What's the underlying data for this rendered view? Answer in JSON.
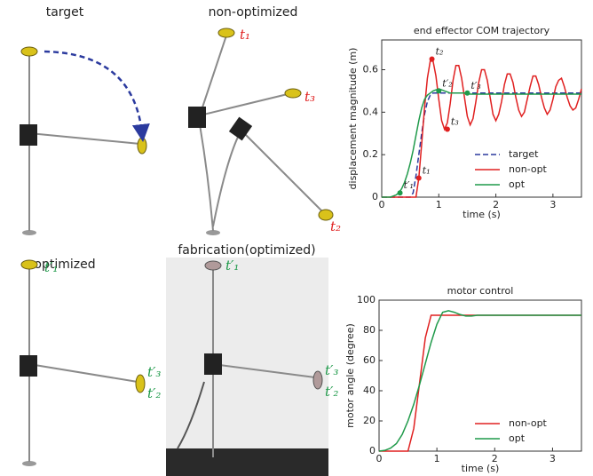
{
  "panels": [
    {
      "title": "target"
    },
    {
      "title": "non-optimized",
      "labels": [
        "t₁",
        "t₃",
        "t₂"
      ]
    },
    {
      "title": "optimized",
      "labels": [
        "t′₁",
        "t′₃",
        "t′₂"
      ]
    },
    {
      "title": "fabrication(optimized)",
      "labels": [
        "t′₁",
        "t′₃",
        "t′₂"
      ]
    }
  ],
  "chart_data": [
    {
      "type": "line",
      "title": "end effector COM trajectory",
      "xlabel": "time (s)",
      "ylabel": "displacement magnitude (m)",
      "xlim": [
        0,
        3.5
      ],
      "ylim": [
        0,
        0.74
      ],
      "xticks": [
        0,
        1,
        2,
        3
      ],
      "yticks": [
        0,
        0.2,
        0.4,
        0.6
      ],
      "legend": "lower right",
      "x": [
        0,
        0.05,
        0.1,
        0.15,
        0.2,
        0.25,
        0.3,
        0.35,
        0.4,
        0.45,
        0.5,
        0.55,
        0.6,
        0.65,
        0.7,
        0.75,
        0.8,
        0.85,
        0.9,
        0.95,
        1,
        1.05,
        1.1,
        1.15,
        1.2,
        1.25,
        1.3,
        1.35,
        1.4,
        1.45,
        1.5,
        1.55,
        1.6,
        1.65,
        1.7,
        1.75,
        1.8,
        1.85,
        1.9,
        1.95,
        2,
        2.05,
        2.1,
        2.15,
        2.2,
        2.25,
        2.3,
        2.35,
        2.4,
        2.45,
        2.5,
        2.55,
        2.6,
        2.65,
        2.7,
        2.75,
        2.8,
        2.85,
        2.9,
        2.95,
        3,
        3.05,
        3.1,
        3.15,
        3.2,
        3.25,
        3.3,
        3.35,
        3.4,
        3.45,
        3.5
      ],
      "series": [
        {
          "name": "target",
          "color": "#2b3a9e",
          "style": "dashed",
          "values": [
            0,
            0,
            0,
            0,
            0,
            0,
            0,
            0,
            0,
            0,
            0,
            0.02,
            0.1,
            0.2,
            0.3,
            0.39,
            0.45,
            0.48,
            0.49,
            0.49,
            0.49,
            0.49,
            0.49,
            0.49,
            0.49,
            0.49,
            0.49,
            0.49,
            0.49,
            0.49,
            0.49,
            0.49,
            0.49,
            0.49,
            0.49,
            0.49,
            0.49,
            0.49,
            0.49,
            0.49,
            0.49,
            0.49,
            0.49,
            0.49,
            0.49,
            0.49,
            0.49,
            0.49,
            0.49,
            0.49,
            0.49,
            0.49,
            0.49,
            0.49,
            0.49,
            0.49,
            0.49,
            0.49,
            0.49,
            0.49,
            0.49,
            0.49,
            0.49,
            0.49,
            0.49,
            0.49,
            0.49,
            0.49,
            0.49,
            0.49,
            0.49
          ]
        },
        {
          "name": "non-opt",
          "color": "#e02020",
          "style": "solid",
          "values": [
            0,
            0,
            0,
            0,
            0,
            0,
            0,
            0,
            0,
            0,
            0,
            0,
            0,
            0.09,
            0.25,
            0.42,
            0.56,
            0.64,
            0.64,
            0.57,
            0.46,
            0.36,
            0.32,
            0.35,
            0.44,
            0.55,
            0.62,
            0.62,
            0.56,
            0.47,
            0.38,
            0.34,
            0.37,
            0.45,
            0.54,
            0.6,
            0.6,
            0.55,
            0.47,
            0.39,
            0.36,
            0.39,
            0.45,
            0.53,
            0.58,
            0.58,
            0.54,
            0.47,
            0.41,
            0.38,
            0.4,
            0.46,
            0.52,
            0.57,
            0.57,
            0.53,
            0.47,
            0.42,
            0.39,
            0.41,
            0.46,
            0.52,
            0.55,
            0.56,
            0.52,
            0.47,
            0.43,
            0.41,
            0.42,
            0.46,
            0.51
          ]
        },
        {
          "name": "opt",
          "color": "#1f9a4a",
          "style": "solid",
          "values": [
            0,
            0,
            0,
            0,
            0.005,
            0.01,
            0.02,
            0.04,
            0.07,
            0.11,
            0.16,
            0.22,
            0.29,
            0.36,
            0.42,
            0.46,
            0.48,
            0.49,
            0.5,
            0.505,
            0.51,
            0.505,
            0.5,
            0.495,
            0.49,
            0.49,
            0.49,
            0.49,
            0.49,
            0.49,
            0.49,
            0.485,
            0.485,
            0.485,
            0.485,
            0.485,
            0.485,
            0.485,
            0.485,
            0.485,
            0.485,
            0.485,
            0.485,
            0.485,
            0.485,
            0.485,
            0.485,
            0.485,
            0.485,
            0.485,
            0.485,
            0.485,
            0.485,
            0.485,
            0.485,
            0.485,
            0.485,
            0.485,
            0.485,
            0.485,
            0.485,
            0.485,
            0.485,
            0.485,
            0.485,
            0.485,
            0.485,
            0.485,
            0.485,
            0.485,
            0.485
          ]
        }
      ],
      "annotations": [
        {
          "text": "t₁",
          "x": 0.65,
          "y": 0.09,
          "color": "#e02020"
        },
        {
          "text": "t₂",
          "x": 0.88,
          "y": 0.65,
          "color": "#e02020"
        },
        {
          "text": "t₃",
          "x": 1.15,
          "y": 0.32,
          "color": "#e02020"
        },
        {
          "text": "t′₁",
          "x": 0.32,
          "y": 0.02,
          "color": "#1f9a4a"
        },
        {
          "text": "t′₂",
          "x": 1.0,
          "y": 0.5,
          "color": "#1f9a4a"
        },
        {
          "text": "t′₃",
          "x": 1.5,
          "y": 0.49,
          "color": "#1f9a4a"
        }
      ]
    },
    {
      "type": "line",
      "title": "motor control",
      "xlabel": "time (s)",
      "ylabel": "motor angle (degree)",
      "xlim": [
        0,
        3.5
      ],
      "ylim": [
        0,
        100
      ],
      "xticks": [
        0,
        1,
        2,
        3
      ],
      "yticks": [
        0,
        20,
        40,
        60,
        80,
        100
      ],
      "legend": "lower right",
      "x": [
        0,
        0.1,
        0.2,
        0.3,
        0.4,
        0.5,
        0.6,
        0.7,
        0.8,
        0.9,
        1,
        1.1,
        1.2,
        1.3,
        1.4,
        1.5,
        1.6,
        1.7,
        1.8,
        1.9,
        2,
        2.1,
        2.2,
        2.3,
        2.4,
        2.5,
        2.6,
        2.7,
        2.8,
        2.9,
        3,
        3.1,
        3.2,
        3.3,
        3.4,
        3.5
      ],
      "series": [
        {
          "name": "non-opt",
          "color": "#e02020",
          "style": "solid",
          "values": [
            0,
            0,
            0,
            0,
            0,
            0,
            15,
            45,
            75,
            90,
            90,
            90,
            90,
            90,
            90,
            90,
            90,
            90,
            90,
            90,
            90,
            90,
            90,
            90,
            90,
            90,
            90,
            90,
            90,
            90,
            90,
            90,
            90,
            90,
            90,
            90
          ]
        },
        {
          "name": "opt",
          "color": "#1f9a4a",
          "style": "solid",
          "values": [
            0,
            0.5,
            2,
            5,
            11,
            20,
            31,
            44,
            58,
            72,
            84,
            92,
            93,
            92,
            90.5,
            89.5,
            89.5,
            90,
            90,
            90,
            90,
            90,
            90,
            90,
            90,
            90,
            90,
            90,
            90,
            90,
            90,
            90,
            90,
            90,
            90,
            90
          ]
        }
      ]
    }
  ]
}
